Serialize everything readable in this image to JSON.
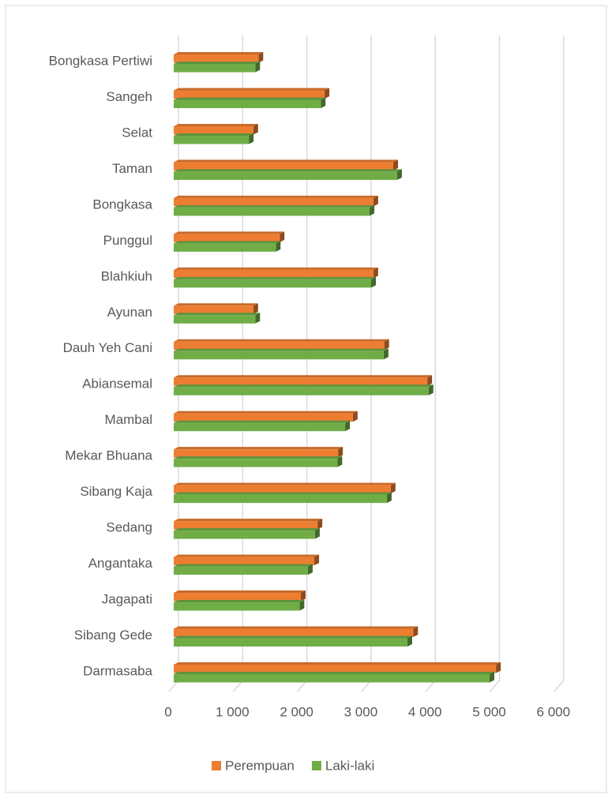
{
  "chart_data": {
    "type": "hbar",
    "categories": [
      "Bongkasa Pertiwi",
      "Sangeh",
      "Selat",
      "Taman",
      "Bongkasa",
      "Punggul",
      "Blahkiuh",
      "Ayunan",
      "Dauh Yeh Cani",
      "Abiansemal",
      "Mambal",
      "Mekar Bhuana",
      "Sibang Kaja",
      "Sedang",
      "Angantaka",
      "Jagapati",
      "Sibang Gede",
      "Darmasaba"
    ],
    "series": [
      {
        "name": "Perempuan",
        "color": "#ed7d31",
        "values": [
          1320,
          2350,
          1240,
          3420,
          3110,
          1650,
          3110,
          1240,
          3280,
          3950,
          2790,
          2560,
          3380,
          2240,
          2190,
          1980,
          3730,
          5020
        ]
      },
      {
        "name": "Laki-laki",
        "color": "#70ad47",
        "values": [
          1270,
          2290,
          1170,
          3480,
          3050,
          1590,
          3075,
          1270,
          3270,
          3970,
          2670,
          2550,
          3320,
          2200,
          2090,
          1960,
          3640,
          4920
        ]
      }
    ],
    "xlim": [
      0,
      6000
    ],
    "xticks": [
      0,
      {
        "value": 1000,
        "label": "1 000"
      },
      {
        "value": 2000,
        "label": "2 000"
      },
      {
        "value": 3000,
        "label": "3 000"
      },
      {
        "value": 4000,
        "label": "4 000"
      },
      {
        "value": 5000,
        "label": "5 000"
      },
      {
        "value": 6000,
        "label": "6 000"
      }
    ],
    "grid": true,
    "legend": "bottom"
  }
}
